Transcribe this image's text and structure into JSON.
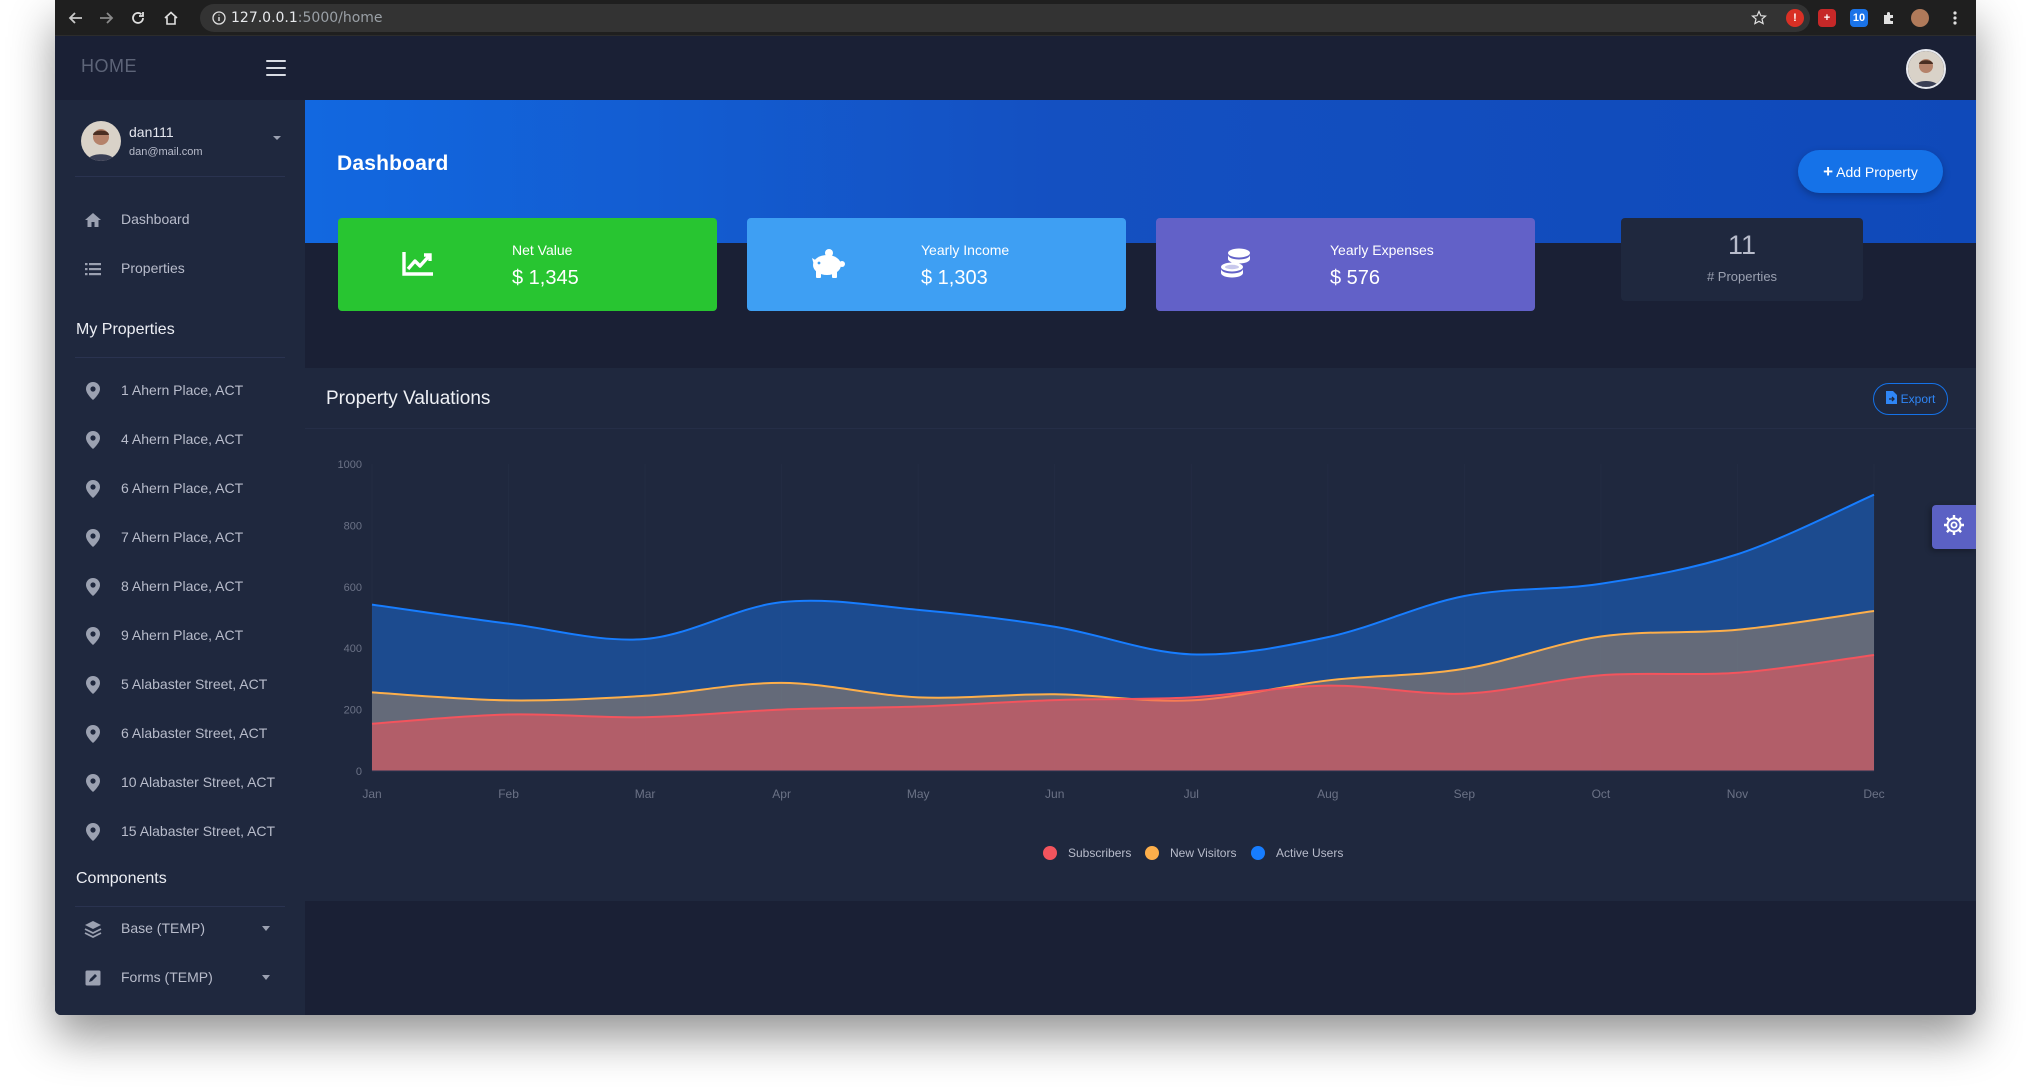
{
  "browser": {
    "url_host": "127.0.0.1",
    "url_rest": ":5000/home",
    "icons": [
      "back-arrow-icon",
      "forward-arrow-icon",
      "reload-icon",
      "home-icon",
      "info-icon",
      "star-icon",
      "extension-icons",
      "puzzle-icon",
      "profile-icon",
      "kebab-menu-icon"
    ]
  },
  "sidebar": {
    "logo": "HOME",
    "user": {
      "name": "dan111",
      "email": "dan@mail.com"
    },
    "nav": [
      {
        "label": "Dashboard",
        "icon": "home-icon"
      },
      {
        "label": "Properties",
        "icon": "list-icon"
      }
    ],
    "my_properties_title": "My Properties",
    "properties": [
      "1 Ahern Place, ACT",
      "4 Ahern Place, ACT",
      "6 Ahern Place, ACT",
      "7 Ahern Place, ACT",
      "8 Ahern Place, ACT",
      "9 Ahern Place, ACT",
      "5 Alabaster Street, ACT",
      "6 Alabaster Street, ACT",
      "10 Alabaster Street, ACT",
      "15 Alabaster Street, ACT"
    ],
    "components_title": "Components",
    "components": [
      {
        "label": "Base (TEMP)",
        "icon": "layers-icon"
      },
      {
        "label": "Forms (TEMP)",
        "icon": "edit-icon"
      }
    ]
  },
  "header": {
    "page_title": "Dashboard",
    "add_button": "Add Property"
  },
  "stats": [
    {
      "label": "Net Value",
      "value": "$ 1,345",
      "icon": "chart-line-icon",
      "color": "#28c531"
    },
    {
      "label": "Yearly Income",
      "value": "$ 1,303",
      "icon": "piggy-bank-icon",
      "color": "#3e9ff3"
    },
    {
      "label": "Yearly Expenses",
      "value": "$ 576",
      "icon": "coins-icon",
      "color": "#6261c8"
    }
  ],
  "properties_count": {
    "value": "11",
    "label": "# Properties"
  },
  "panel": {
    "title": "Property Valuations",
    "export_label": "Export"
  },
  "colors": {
    "accent": "#1572e8",
    "background": "#1a2035",
    "panel": "#1f283e"
  },
  "chart_data": {
    "type": "area",
    "x": [
      "Jan",
      "Feb",
      "Mar",
      "Apr",
      "May",
      "Jun",
      "Jul",
      "Aug",
      "Sep",
      "Oct",
      "Nov",
      "Dec"
    ],
    "ylim": [
      0,
      1000
    ],
    "yticks": [
      0,
      200,
      400,
      600,
      800,
      1000
    ],
    "grid": "vertical",
    "legend_position": "bottom",
    "series": [
      {
        "name": "Subscribers",
        "color": "#f3545d",
        "values": [
          154,
          184,
          175,
          200,
          210,
          231,
          240,
          278,
          252,
          312,
          320,
          378
        ]
      },
      {
        "name": "New Visitors",
        "color": "#fdaf4b",
        "values": [
          256,
          230,
          245,
          287,
          240,
          250,
          230,
          295,
          333,
          438,
          460,
          521
        ]
      },
      {
        "name": "Active Users",
        "color": "#177dff",
        "values": [
          542,
          480,
          430,
          550,
          525,
          470,
          380,
          436,
          570,
          610,
          706,
          900
        ]
      }
    ]
  }
}
